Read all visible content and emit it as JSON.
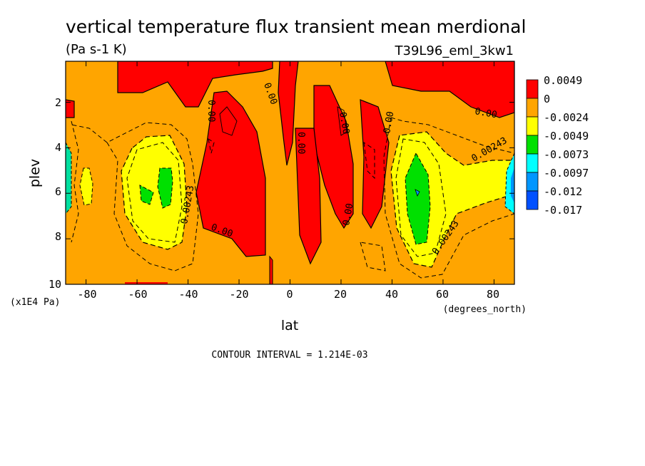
{
  "chart_data": {
    "type": "heatmap",
    "title": "vertical temperature flux transient mean merdional",
    "units": "(Pa s-1 K)",
    "dataset": "T39L96_eml_3kw1",
    "xlabel": "lat",
    "xunits": "(degrees_north)",
    "ylabel": "plev",
    "yunits": "(x1E4 Pa)",
    "xlim": [
      -88,
      88
    ],
    "ylim": [
      10,
      0.2
    ],
    "x_ticks": [
      -80,
      -60,
      -40,
      -20,
      0,
      20,
      40,
      60,
      80
    ],
    "x_tick_labels": [
      "-80",
      "-60",
      "-40",
      "-20",
      "0",
      "20",
      "40",
      "60",
      "80"
    ],
    "y_ticks": [
      2,
      4,
      6,
      8,
      10
    ],
    "y_tick_labels": [
      "2",
      "4",
      "6",
      "8",
      "10"
    ],
    "contour_interval_text": "CONTOUR INTERVAL = 1.214E-03",
    "contour_labels": [
      "0.00",
      "0.00",
      "0.00",
      "0.00",
      "0.00",
      "0.00",
      "0.00",
      "0.00",
      "0.00243",
      "0.00243",
      "0.00243"
    ],
    "legend": {
      "labels": [
        "0.0049",
        "0",
        "-0.0024",
        "-0.0049",
        "-0.0073",
        "-0.0097",
        "-0.012",
        "-0.017"
      ],
      "colors": [
        "#ff0000",
        "#ffa500",
        "#ffff00",
        "#00e000",
        "#00ffff",
        "#0096ff",
        "#0050ff"
      ]
    },
    "colors": {
      "positive": "#ff0000",
      "zero_to_m1": "#ffa500",
      "m1_to_m2": "#ffff00",
      "m2_to_m3": "#00e000",
      "m3_to_m4": "#00ffff",
      "m4_to_m5": "#0096ff",
      "below_m5": "#0050ff"
    }
  }
}
